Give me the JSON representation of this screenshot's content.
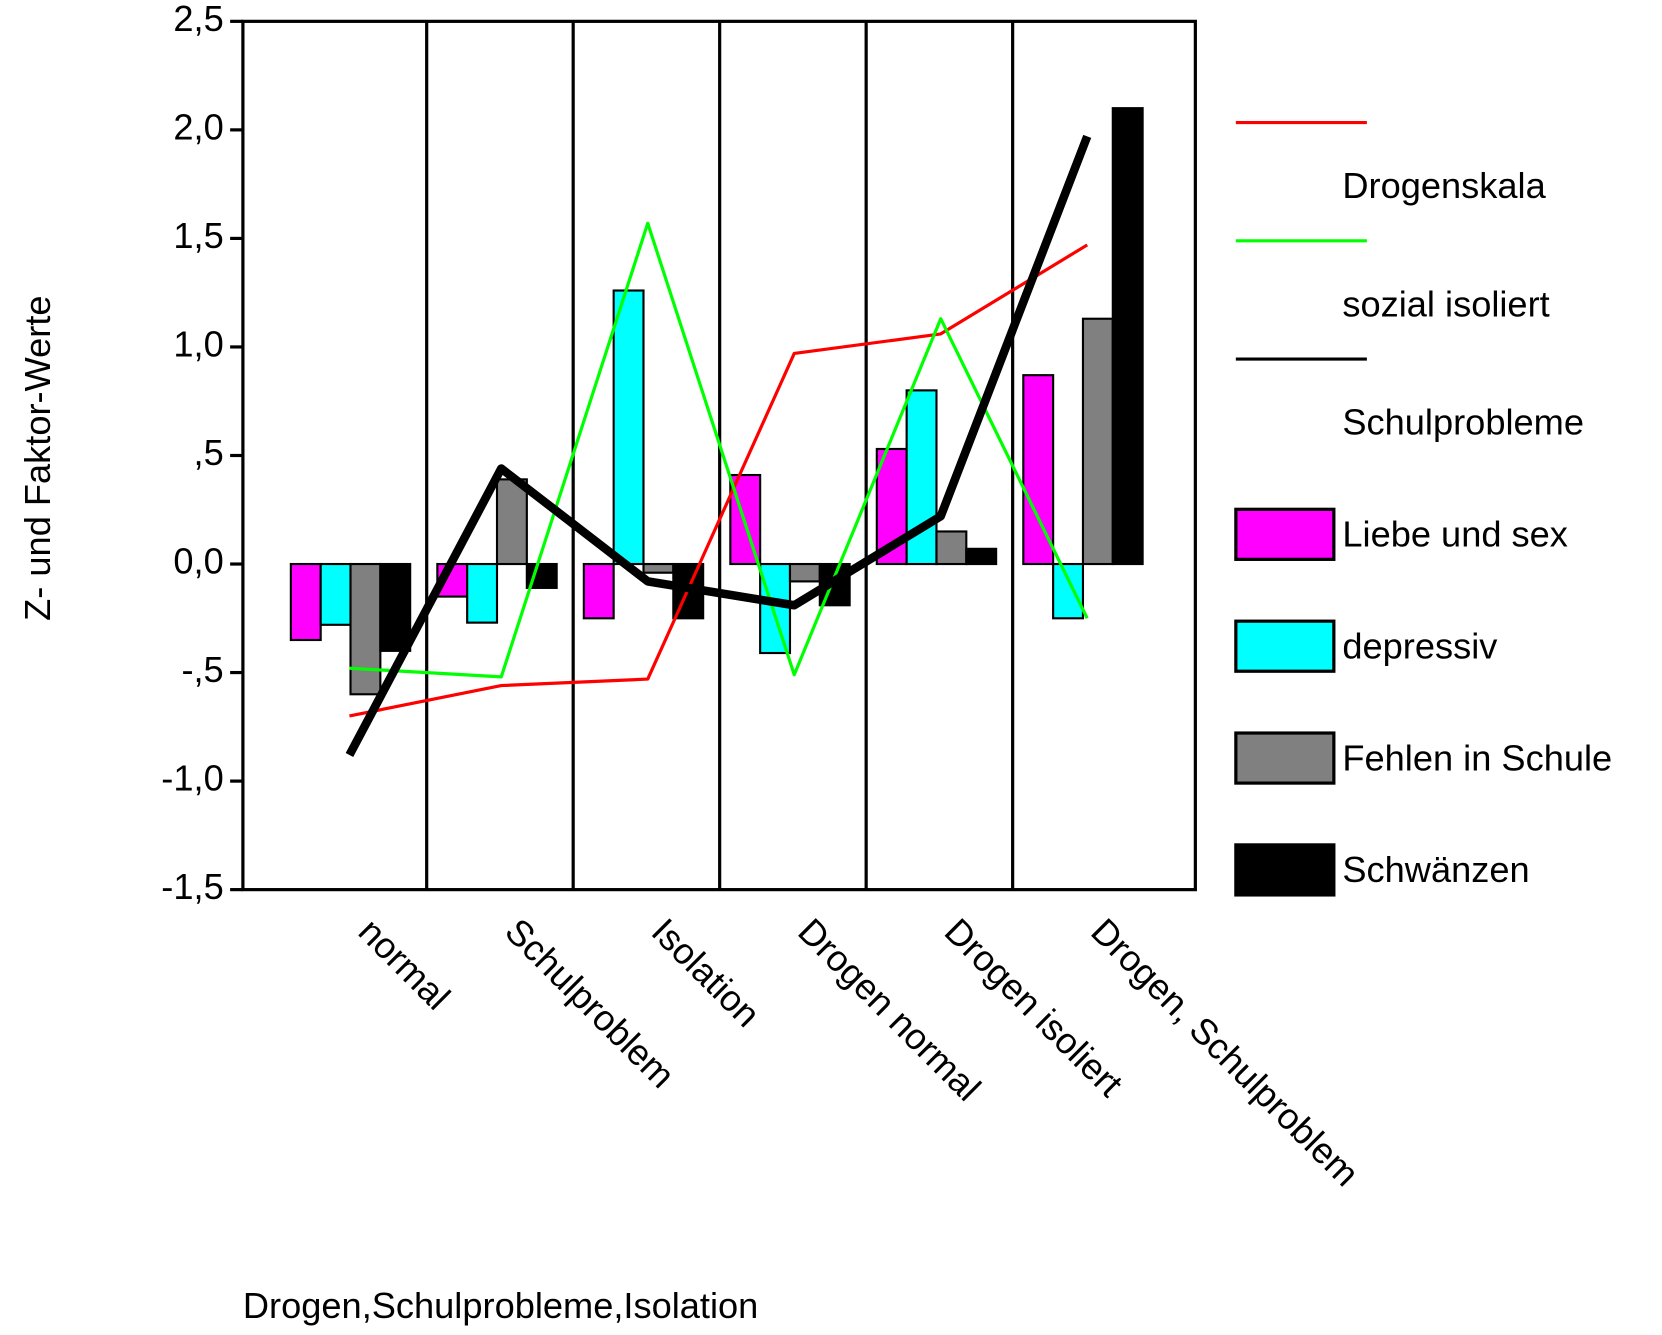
{
  "chart_data": {
    "type": "bar_line",
    "x_label": "Drogen,Schulprobleme,Isolation",
    "y_label": "Z- und Faktor-Werte",
    "categories": [
      "normal",
      "Schulproblem",
      "Isolation",
      "Drogen normal",
      "Drogen isoliert",
      "Drogen, Schulproblem"
    ],
    "ylim": [
      -1.5,
      2.5
    ],
    "yticks": [
      {
        "value": 2.5,
        "label": "2,5"
      },
      {
        "value": 2.0,
        "label": "2,0"
      },
      {
        "value": 1.5,
        "label": "1,5"
      },
      {
        "value": 1.0,
        "label": "1,0"
      },
      {
        "value": 0.5,
        "label": ",5"
      },
      {
        "value": 0,
        "label": "0,0"
      },
      {
        "value": -0.5,
        "label": "-,5"
      },
      {
        "value": -1.0,
        "label": "-1,0"
      },
      {
        "value": -1.5,
        "label": "-1,5"
      }
    ],
    "lines": [
      {
        "name": "Drogenskala",
        "color": "#ff0000",
        "values": [
          -0.7,
          -0.56,
          -0.53,
          0.97,
          1.06,
          1.47
        ]
      },
      {
        "name": "sozial isoliert",
        "color": "#00ff00",
        "values": [
          -0.48,
          -0.52,
          1.57,
          -0.51,
          1.13,
          -0.25
        ]
      },
      {
        "name": "Schulprobleme",
        "color": "#000000",
        "values": [
          -0.88,
          0.44,
          -0.08,
          -0.19,
          0.22,
          1.97
        ]
      }
    ],
    "series": [
      {
        "name": "Liebe und sex",
        "color": "#ff00ff",
        "values": [
          -0.35,
          -0.15,
          -0.25,
          0.41,
          0.53,
          0.87
        ]
      },
      {
        "name": "depressiv",
        "color": "#00ffff",
        "values": [
          -0.28,
          -0.27,
          1.26,
          -0.41,
          0.8,
          -0.25
        ]
      },
      {
        "name": "Fehlen in Schule",
        "color": "#808080",
        "values": [
          -0.6,
          0.39,
          -0.04,
          -0.08,
          0.15,
          1.13
        ]
      },
      {
        "name": "Schwänzen",
        "color": "#000000",
        "values": [
          -0.4,
          -0.11,
          -0.25,
          -0.19,
          0.07,
          2.1
        ]
      }
    ]
  }
}
